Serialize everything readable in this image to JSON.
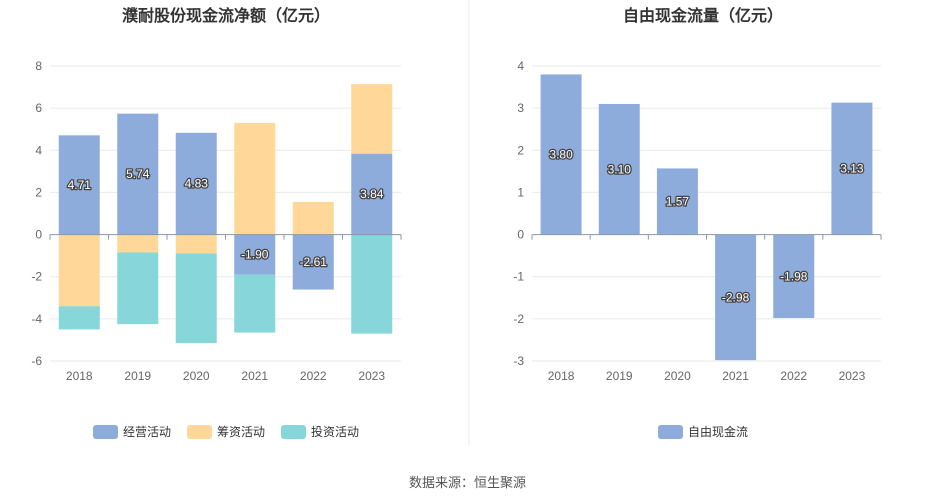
{
  "source": "数据来源：恒生聚源",
  "chart_data": [
    {
      "type": "bar",
      "stacked": true,
      "title": "濮耐股份现金流净额（亿元）",
      "categories": [
        "2018",
        "2019",
        "2020",
        "2021",
        "2022",
        "2023"
      ],
      "ylim": [
        -6,
        8
      ],
      "yticks": [
        -6,
        -4,
        -2,
        0,
        2,
        4,
        6,
        8
      ],
      "grid": true,
      "legend_position": "bottom",
      "series": [
        {
          "name": "经营活动",
          "color": "#8EACDB",
          "values": [
            4.71,
            5.74,
            4.83,
            -1.9,
            -2.61,
            3.84
          ],
          "labeled": true
        },
        {
          "name": "筹资活动",
          "color": "#FFD899",
          "values": [
            -3.4,
            -0.85,
            -0.9,
            5.3,
            1.55,
            3.3
          ],
          "labeled": false
        },
        {
          "name": "投资活动",
          "color": "#86D6DA",
          "values": [
            -1.1,
            -3.4,
            -4.25,
            -2.75,
            0,
            -4.7
          ],
          "labeled": false
        }
      ]
    },
    {
      "type": "bar",
      "title": "自由现金流量（亿元）",
      "categories": [
        "2018",
        "2019",
        "2020",
        "2021",
        "2022",
        "2023"
      ],
      "ylim": [
        -3,
        4
      ],
      "yticks": [
        -3,
        -2,
        -1,
        0,
        1,
        2,
        3,
        4
      ],
      "grid": true,
      "legend_position": "bottom",
      "series": [
        {
          "name": "自由现金流",
          "color": "#8EACDB",
          "values": [
            3.8,
            3.1,
            1.57,
            -2.98,
            -1.98,
            3.13
          ],
          "labeled": true
        }
      ]
    }
  ]
}
